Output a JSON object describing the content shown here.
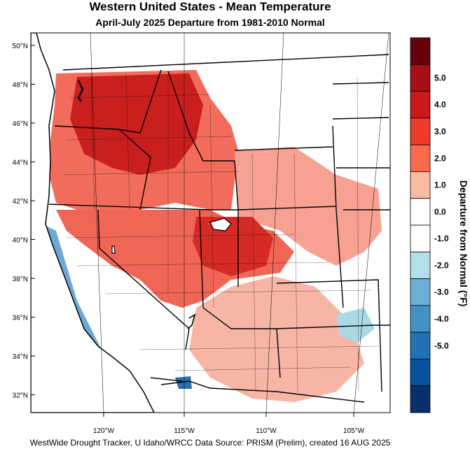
{
  "map": {
    "title": "Western United States - Mean Temperature",
    "subtitle": "April-July 2025  Departure from 1981-2010 Normal",
    "footer": "WestWide Drought Tracker, U Idaho/WRCC Data Source: PRISM (Prelim), created 16 AUG 2025",
    "lat_labels": [
      "50°N",
      "48°N",
      "46°N",
      "44°N",
      "42°N",
      "40°N",
      "38°N",
      "36°N",
      "34°N",
      "32°N"
    ],
    "lon_labels": [
      "120°W",
      "115°W",
      "110°W",
      "105°W"
    ],
    "colorbar": {
      "title": "Departure from Normal (°F)",
      "tick_labels": [
        "5.0",
        "4.0",
        "3.0",
        "2.0",
        "1.0",
        "0.0",
        "-1.0",
        "-2.0",
        "-3.0",
        "-4.0",
        "-5.0"
      ],
      "colors": [
        "#67000d",
        "#a50f15",
        "#cb181d",
        "#ef3b2c",
        "#fb6a4a",
        "#fcbba1",
        "#ffffff",
        "#ffffff",
        "#b3e0e8",
        "#6baed6",
        "#4292c6",
        "#2171b5",
        "#08519c",
        "#08306b"
      ]
    }
  }
}
